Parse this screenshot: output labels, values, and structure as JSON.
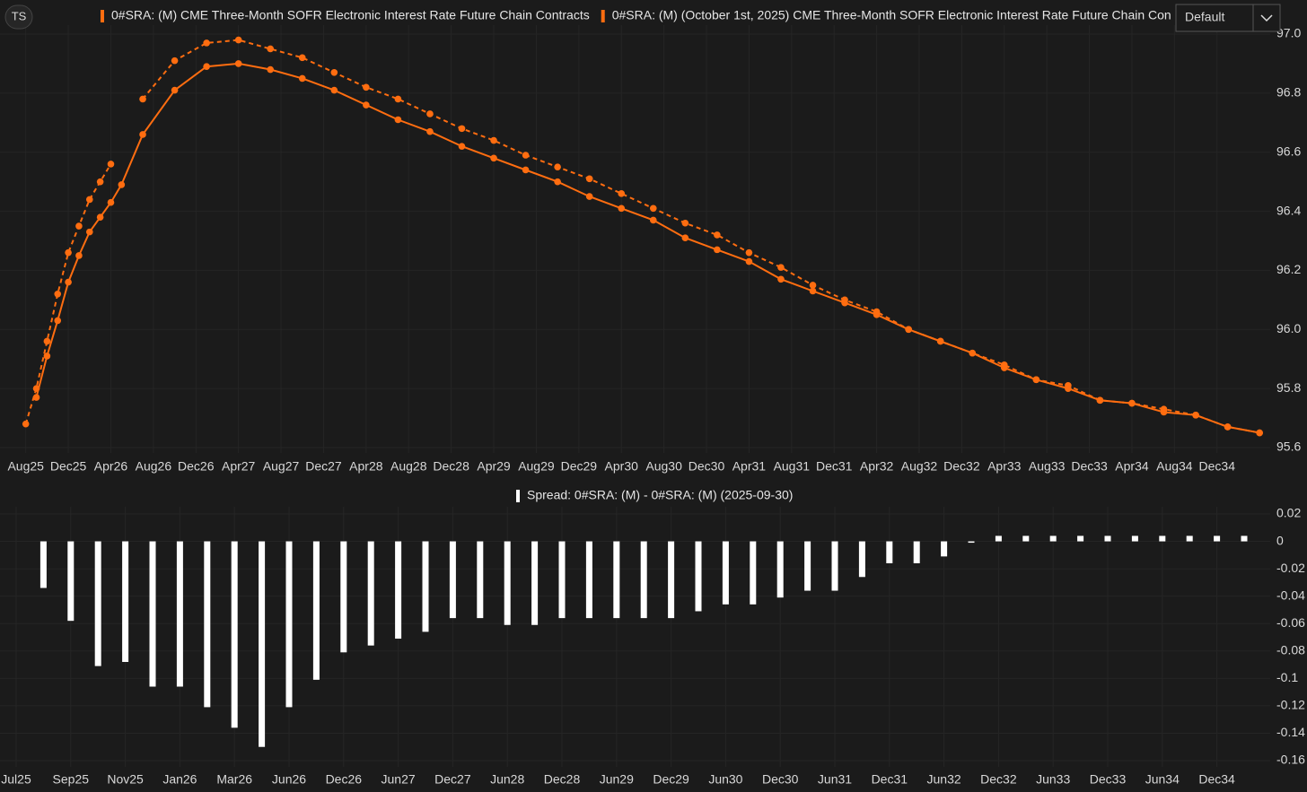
{
  "toolbar": {
    "ts_button": "TS",
    "dropdown": "Default"
  },
  "chart_data": [
    {
      "type": "line",
      "x": [
        "2025-08",
        "2025-09",
        "2025-10",
        "2025-11",
        "2025-12",
        "2026-01",
        "2026-02",
        "2026-03",
        "2026-04",
        "2026-05",
        "2026-07",
        "2026-10",
        "2027-01",
        "2027-04",
        "2027-07",
        "2027-10",
        "2028-01",
        "2028-04",
        "2028-07",
        "2028-10",
        "2029-01",
        "2029-04",
        "2029-07",
        "2029-10",
        "2030-01",
        "2030-04",
        "2030-07",
        "2030-10",
        "2031-01",
        "2031-04",
        "2031-07",
        "2031-10",
        "2032-01",
        "2032-04",
        "2032-07",
        "2032-10",
        "2033-01",
        "2033-04",
        "2033-07",
        "2033-10",
        "2034-01",
        "2034-04",
        "2034-07",
        "2034-10",
        "2035-01",
        "2035-04"
      ],
      "series": [
        {
          "name": "0#SRA: (M) CME Three-Month SOFR Electronic Interest Rate Future Chain Contracts",
          "color": "#ff6d10",
          "line_style": "solid",
          "values": [
            null,
            95.77,
            95.91,
            96.03,
            96.16,
            96.25,
            96.33,
            96.38,
            96.43,
            96.49,
            96.66,
            96.81,
            96.89,
            96.9,
            96.88,
            96.85,
            96.81,
            96.76,
            96.71,
            96.67,
            96.62,
            96.58,
            96.54,
            96.5,
            96.45,
            96.41,
            96.37,
            96.31,
            96.27,
            96.23,
            96.17,
            96.13,
            96.09,
            96.05,
            96.0,
            95.96,
            95.92,
            95.87,
            95.83,
            95.8,
            95.76,
            95.75,
            95.72,
            95.71,
            95.67,
            95.65
          ]
        },
        {
          "name": "0#SRA: (M) (October 1st, 2025) CME Three-Month SOFR Electronic Interest Rate Future Chain Con",
          "color": "#ff6d10",
          "line_style": "dashed",
          "values": [
            95.68,
            95.8,
            95.96,
            96.12,
            96.26,
            96.35,
            96.44,
            96.5,
            96.56,
            null,
            96.78,
            96.91,
            96.97,
            96.98,
            96.95,
            96.92,
            96.87,
            96.82,
            96.78,
            96.73,
            96.68,
            96.64,
            96.59,
            96.55,
            96.51,
            96.46,
            96.41,
            96.36,
            96.32,
            96.26,
            96.21,
            96.15,
            96.1,
            96.06,
            96.0,
            95.96,
            95.92,
            95.88,
            95.83,
            95.81,
            95.76,
            95.75,
            95.73,
            95.71,
            95.67,
            95.65
          ]
        }
      ],
      "xlim": [
        "2025-06",
        "2035-05"
      ],
      "xticks": [
        {
          "value": "2025-08",
          "label": "Aug25"
        },
        {
          "value": "2025-12",
          "label": "Dec25"
        },
        {
          "value": "2026-04",
          "label": "Apr26"
        },
        {
          "value": "2026-08",
          "label": "Aug26"
        },
        {
          "value": "2026-12",
          "label": "Dec26"
        },
        {
          "value": "2027-04",
          "label": "Apr27"
        },
        {
          "value": "2027-08",
          "label": "Aug27"
        },
        {
          "value": "2027-12",
          "label": "Dec27"
        },
        {
          "value": "2028-04",
          "label": "Apr28"
        },
        {
          "value": "2028-08",
          "label": "Aug28"
        },
        {
          "value": "2028-12",
          "label": "Dec28"
        },
        {
          "value": "2029-04",
          "label": "Apr29"
        },
        {
          "value": "2029-08",
          "label": "Aug29"
        },
        {
          "value": "2029-12",
          "label": "Dec29"
        },
        {
          "value": "2030-04",
          "label": "Apr30"
        },
        {
          "value": "2030-08",
          "label": "Aug30"
        },
        {
          "value": "2030-12",
          "label": "Dec30"
        },
        {
          "value": "2031-04",
          "label": "Apr31"
        },
        {
          "value": "2031-08",
          "label": "Aug31"
        },
        {
          "value": "2031-12",
          "label": "Dec31"
        },
        {
          "value": "2032-04",
          "label": "Apr32"
        },
        {
          "value": "2032-08",
          "label": "Aug32"
        },
        {
          "value": "2032-12",
          "label": "Dec32"
        },
        {
          "value": "2033-04",
          "label": "Apr33"
        },
        {
          "value": "2033-08",
          "label": "Aug33"
        },
        {
          "value": "2033-12",
          "label": "Dec33"
        },
        {
          "value": "2034-04",
          "label": "Apr34"
        },
        {
          "value": "2034-08",
          "label": "Aug34"
        },
        {
          "value": "2034-12",
          "label": "Dec34"
        }
      ],
      "ylim": [
        95.6,
        97.0
      ],
      "yticks": [
        95.6,
        95.8,
        {
          "value": 96,
          "label": "96.0"
        },
        96.2,
        96.4,
        96.6,
        96.8,
        {
          "value": 97,
          "label": "97.0"
        }
      ],
      "grid": true
    },
    {
      "type": "bar",
      "categories": [
        "Jul25",
        null,
        "Sep25",
        null,
        "Nov25",
        null,
        "Jan26",
        null,
        "Mar26",
        null,
        "Jun26",
        null,
        "Dec26",
        null,
        "Jun27",
        null,
        "Dec27",
        null,
        "Jun28",
        null,
        "Dec28",
        null,
        "Jun29",
        null,
        "Dec29",
        null,
        "Jun30",
        null,
        "Dec30",
        null,
        "Jun31",
        null,
        "Dec31",
        null,
        "Jun32",
        null,
        "Dec32",
        null,
        "Jun33",
        null,
        "Dec33",
        null,
        "Jun34",
        null,
        "Dec34",
        null
      ],
      "series": [
        {
          "name": "Spread: 0#SRA: (M) - 0#SRA: (M) (2025-09-30)",
          "color": "#ffffff",
          "values": [
            null,
            -0.034,
            -0.058,
            -0.091,
            -0.088,
            -0.106,
            -0.106,
            -0.121,
            -0.136,
            -0.15,
            -0.121,
            -0.101,
            -0.081,
            -0.076,
            -0.071,
            -0.066,
            -0.056,
            -0.056,
            -0.061,
            -0.061,
            -0.056,
            -0.056,
            -0.056,
            -0.056,
            -0.056,
            -0.051,
            -0.046,
            -0.046,
            -0.041,
            -0.036,
            -0.036,
            -0.026,
            -0.016,
            -0.016,
            -0.011,
            -0.001,
            0.004,
            0.004,
            0.004,
            0.004,
            0.004,
            0.004,
            0.004,
            0.004,
            0.004,
            0.004
          ]
        }
      ],
      "ylim": [
        -0.16,
        0.02
      ],
      "yticks": [
        0.02,
        0,
        -0.02,
        -0.04,
        -0.06,
        -0.08,
        -0.1,
        -0.12,
        -0.14,
        -0.16
      ],
      "grid": true
    }
  ]
}
